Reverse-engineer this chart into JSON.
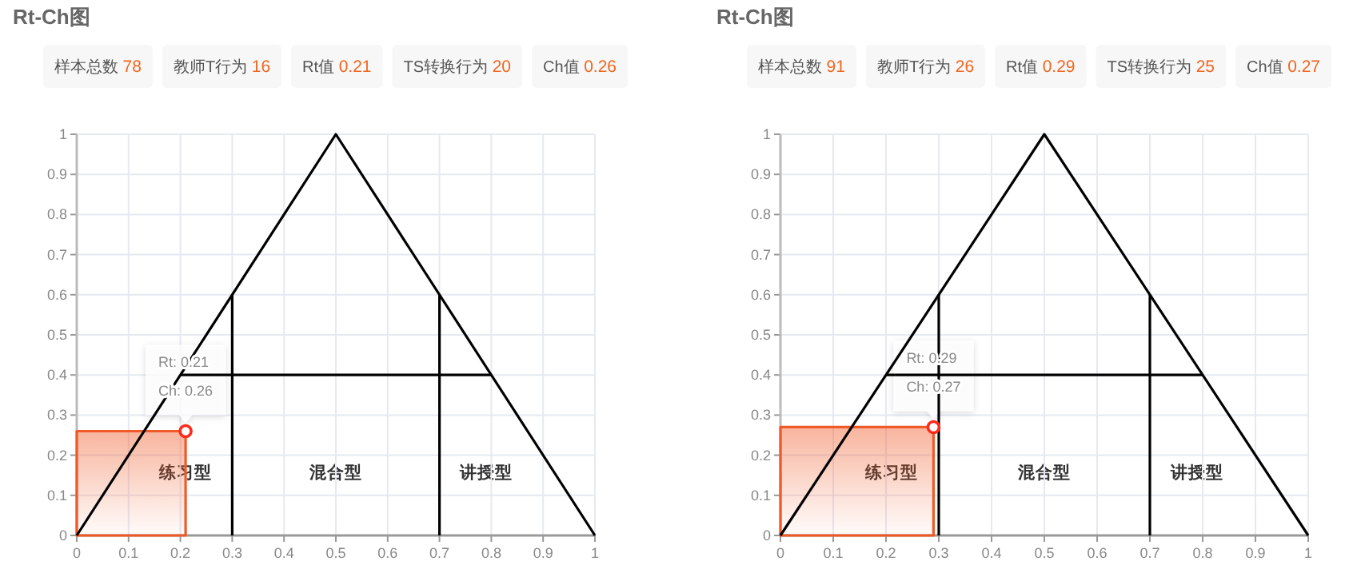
{
  "chart_data": [
    {
      "type": "scatter",
      "title": "Rt-Ch图",
      "annotations": [
        "样本总数 78",
        "教师T行为 16",
        "Rt值 0.21",
        "TS转换行为 20",
        "Ch值 0.26",
        {
          "text": "Rt: 0.21\nCh: 0.26",
          "x": 0.21,
          "y": 0.26
        },
        "练习型",
        "混合型",
        "讲授型"
      ],
      "series": [
        {
          "type": "area",
          "color": "#f05a28",
          "x": [
            0,
            0.21
          ],
          "values": [
            0.26,
            0.26
          ]
        },
        {
          "type": "line",
          "color": "#000000",
          "x": [
            0,
            0.5,
            1
          ],
          "values": [
            0,
            1,
            0
          ]
        },
        {
          "type": "line",
          "color": "#000000",
          "x": [
            0.3,
            0.3
          ],
          "values": [
            0,
            0.6
          ]
        },
        {
          "type": "line",
          "color": "#000000",
          "x": [
            0.7,
            0.7
          ],
          "values": [
            0,
            0.6
          ]
        },
        {
          "type": "line",
          "color": "#000000",
          "x": [
            0.2,
            0.8
          ],
          "values": [
            0.4,
            0.4
          ]
        },
        {
          "type": "scatter",
          "color": "#ff2a1a",
          "x": [
            0.21
          ],
          "values": [
            0.26
          ],
          "marker": "circle"
        }
      ],
      "xlim": [
        0,
        1
      ],
      "ylim": [
        0,
        1
      ],
      "xticks": [
        0,
        0.1,
        0.2,
        0.3,
        0.4,
        0.5,
        0.6,
        0.7,
        0.8,
        0.9,
        1
      ],
      "yticks": [
        0,
        0.1,
        0.2,
        0.3,
        0.4,
        0.5,
        0.6,
        0.7,
        0.8,
        0.9,
        1
      ],
      "grid": true
    },
    {
      "type": "scatter",
      "title": "Rt-Ch图",
      "annotations": [
        "样本总数 91",
        "教师T行为 26",
        "Rt值 0.29",
        "TS转换行为 25",
        "Ch值 0.27",
        {
          "text": "Rt: 0.29\nCh: 0.27",
          "x": 0.29,
          "y": 0.27
        },
        "练习型",
        "混合型",
        "讲授型"
      ],
      "series": [
        {
          "type": "area",
          "color": "#f05a28",
          "x": [
            0,
            0.29
          ],
          "values": [
            0.27,
            0.27
          ]
        },
        {
          "type": "line",
          "color": "#000000",
          "x": [
            0,
            0.5,
            1
          ],
          "values": [
            0,
            1,
            0
          ]
        },
        {
          "type": "line",
          "color": "#000000",
          "x": [
            0.3,
            0.3
          ],
          "values": [
            0,
            0.6
          ]
        },
        {
          "type": "line",
          "color": "#000000",
          "x": [
            0.7,
            0.7
          ],
          "values": [
            0,
            0.6
          ]
        },
        {
          "type": "line",
          "color": "#000000",
          "x": [
            0.2,
            0.8
          ],
          "values": [
            0.4,
            0.4
          ]
        },
        {
          "type": "scatter",
          "color": "#ff2a1a",
          "x": [
            0.29
          ],
          "values": [
            0.27
          ],
          "marker": "circle"
        }
      ],
      "xlim": [
        0,
        1
      ],
      "ylim": [
        0,
        1
      ],
      "xticks": [
        0,
        0.1,
        0.2,
        0.3,
        0.4,
        0.5,
        0.6,
        0.7,
        0.8,
        0.9,
        1
      ],
      "yticks": [
        0,
        0.1,
        0.2,
        0.3,
        0.4,
        0.5,
        0.6,
        0.7,
        0.8,
        0.9,
        1
      ],
      "grid": true
    }
  ]
}
